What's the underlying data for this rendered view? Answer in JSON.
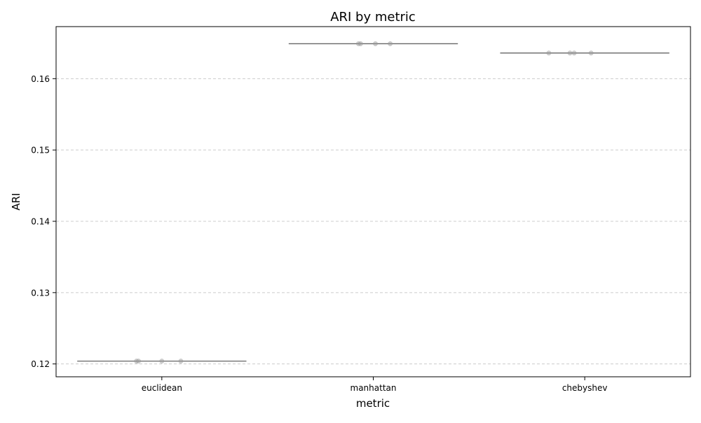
{
  "chart_data": {
    "type": "box",
    "title": "ARI by metric",
    "xlabel": "metric",
    "ylabel": "ARI",
    "categories": [
      "euclidean",
      "manhattan",
      "chebyshev"
    ],
    "ylim": [
      0.1182,
      0.1673
    ],
    "yticks": [
      0.12,
      0.13,
      0.14,
      0.15,
      0.16
    ],
    "ytick_labels": [
      "0.12",
      "0.13",
      "0.14",
      "0.15",
      "0.16"
    ],
    "grid": "y-dashed",
    "median_values": [
      0.1204,
      0.1649,
      0.1636
    ],
    "points": [
      {
        "category": "euclidean",
        "x_jitter": [
          -0.12,
          -0.11,
          0.0,
          0.09
        ],
        "value": 0.1204
      },
      {
        "category": "manhattan",
        "x_jitter": [
          -0.07,
          -0.06,
          0.01,
          0.08
        ],
        "value": 0.1649
      },
      {
        "category": "chebyshev",
        "x_jitter": [
          -0.17,
          -0.07,
          -0.05,
          0.03
        ],
        "value": 0.1636
      }
    ],
    "colors": {
      "median_line": "#666666",
      "point": "#999999",
      "grid": "#cccccc",
      "axis": "#000000"
    }
  }
}
